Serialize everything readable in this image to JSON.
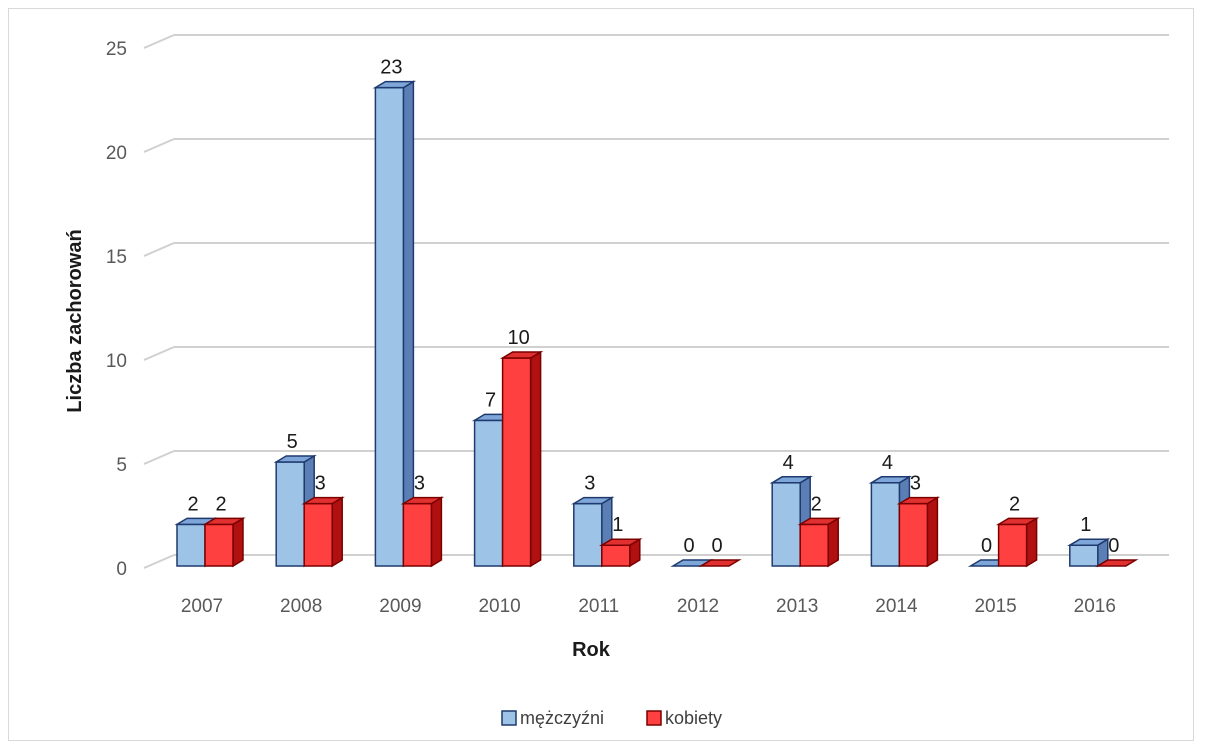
{
  "chart_data": {
    "type": "bar",
    "title": "",
    "xlabel": "Rok",
    "ylabel": "Liczba zachorowań",
    "categories": [
      "2007",
      "2008",
      "2009",
      "2010",
      "2011",
      "2012",
      "2013",
      "2014",
      "2015",
      "2016"
    ],
    "series": [
      {
        "name": "mężczyźni",
        "values": [
          2,
          5,
          23,
          7,
          3,
          0,
          4,
          4,
          0,
          1
        ],
        "color": "#9dc3e6",
        "side_color": "#5b7fb5",
        "top_color": "#7ea6d8",
        "edge_color": "#1f3a6e"
      },
      {
        "name": "kobiety",
        "values": [
          2,
          3,
          3,
          10,
          1,
          0,
          2,
          3,
          2,
          0
        ],
        "color": "#ff4040",
        "side_color": "#b01010",
        "top_color": "#e03030",
        "edge_color": "#7a0000"
      }
    ],
    "ylim": [
      0,
      25
    ],
    "yticks": [
      0,
      5,
      10,
      15,
      20,
      25
    ],
    "grid": true,
    "legend_position": "bottom",
    "data_labels": true
  }
}
